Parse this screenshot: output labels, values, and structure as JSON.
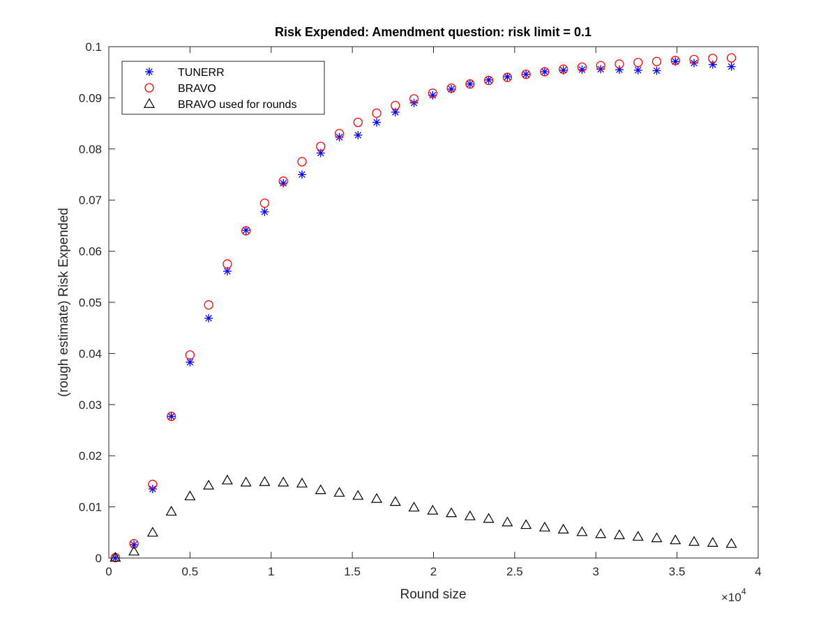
{
  "chart_data": {
    "type": "scatter",
    "title": "Risk Expended: Amendment question: risk limit = 0.1",
    "xlabel": "Round size",
    "ylabel": "(rough estimate) Risk Expended",
    "xlim": [
      0,
      40000
    ],
    "ylim": [
      0,
      0.1
    ],
    "x_tick_values": [
      0,
      5000,
      10000,
      15000,
      20000,
      25000,
      30000,
      35000,
      40000
    ],
    "x_tick_labels": [
      "0",
      "0.5",
      "1",
      "1.5",
      "2",
      "2.5",
      "3",
      "3.5",
      "4"
    ],
    "x_exponent_base": "×10",
    "x_exponent_power": "4",
    "y_tick_values": [
      0,
      0.01,
      0.02,
      0.03,
      0.04,
      0.05,
      0.06,
      0.07,
      0.08,
      0.09,
      0.1
    ],
    "y_tick_labels": [
      "0",
      "0.01",
      "0.02",
      "0.03",
      "0.04",
      "0.05",
      "0.06",
      "0.07",
      "0.08",
      "0.09",
      "0.1"
    ],
    "grid": false,
    "legend_position": "top-left",
    "x": [
      400,
      1550,
      2700,
      3850,
      5000,
      6150,
      7300,
      8450,
      9600,
      10750,
      11900,
      13050,
      14200,
      15350,
      16500,
      17650,
      18800,
      19950,
      21100,
      22250,
      23400,
      24550,
      25700,
      26850,
      28000,
      29150,
      30300,
      31450,
      32600,
      33750,
      34900,
      36050,
      37200,
      38350
    ],
    "series": [
      {
        "name": "TUNERR",
        "marker": "asterisk",
        "color": "#0000ff",
        "values": [
          0.0,
          0.0026,
          0.0135,
          0.0277,
          0.0383,
          0.0469,
          0.0561,
          0.0641,
          0.0677,
          0.0733,
          0.075,
          0.0792,
          0.0823,
          0.0827,
          0.0852,
          0.0872,
          0.089,
          0.0905,
          0.0917,
          0.0927,
          0.0935,
          0.0941,
          0.0946,
          0.0951,
          0.0954,
          0.0955,
          0.0956,
          0.0955,
          0.0954,
          0.0953,
          0.0971,
          0.0968,
          0.0965,
          0.0961
        ]
      },
      {
        "name": "BRAVO",
        "marker": "circle",
        "color": "#ff0000",
        "values": [
          0.0001,
          0.0028,
          0.0144,
          0.0277,
          0.0397,
          0.0495,
          0.0575,
          0.064,
          0.0694,
          0.0737,
          0.0775,
          0.0805,
          0.083,
          0.0852,
          0.087,
          0.0885,
          0.0898,
          0.0909,
          0.0919,
          0.0927,
          0.0934,
          0.094,
          0.0946,
          0.0951,
          0.0956,
          0.096,
          0.0963,
          0.0966,
          0.0969,
          0.0971,
          0.0973,
          0.0975,
          0.0977,
          0.0978
        ]
      },
      {
        "name": "BRAVO used for rounds",
        "marker": "triangle",
        "color": "#000000",
        "values": [
          0.0001,
          0.0013,
          0.005,
          0.0091,
          0.0121,
          0.0142,
          0.0152,
          0.0148,
          0.0149,
          0.0148,
          0.0146,
          0.0133,
          0.0128,
          0.0122,
          0.0116,
          0.011,
          0.0099,
          0.0093,
          0.0088,
          0.0082,
          0.0077,
          0.007,
          0.0065,
          0.006,
          0.0056,
          0.0051,
          0.0047,
          0.0045,
          0.0042,
          0.0039,
          0.0035,
          0.0032,
          0.003,
          0.0028
        ]
      }
    ]
  }
}
